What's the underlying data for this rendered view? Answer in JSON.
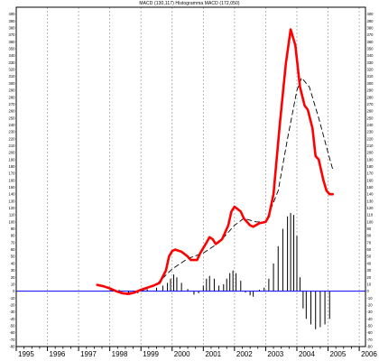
{
  "title": "MACD (130,117) Histogramma MACD (172,050)",
  "colors": {
    "macd": "#ff0000",
    "signal": "#000000",
    "zero_line": "#0000ff",
    "histogram": "#000000",
    "grid": "#9a9a9a"
  },
  "chart_data": {
    "type": "line",
    "title": "MACD (130,117) Histogramma MACD (172,050)",
    "xlabel": "",
    "ylabel": "",
    "xlim": [
      1995.0,
      2006.2
    ],
    "ylim": [
      -80,
      410
    ],
    "y_ticks": [
      400,
      390,
      380,
      370,
      360,
      350,
      340,
      330,
      320,
      310,
      300,
      290,
      280,
      270,
      260,
      250,
      240,
      230,
      220,
      210,
      200,
      190,
      180,
      170,
      160,
      150,
      140,
      130,
      120,
      110,
      100,
      90,
      80,
      70,
      60,
      50,
      40,
      30,
      20,
      10,
      0,
      -10,
      -20,
      -30,
      -40,
      -50,
      -60,
      -70,
      -80
    ],
    "y_tick_labels": [
      "400",
      "390",
      "380",
      "370",
      "360",
      "350",
      "340",
      "330",
      "320",
      "310",
      "300",
      "290",
      "280",
      "270",
      "260",
      "250",
      "240",
      "230",
      "220",
      "210",
      "200",
      "190",
      "180",
      "170",
      "160",
      "150",
      "140",
      "130",
      "120",
      "110",
      "100",
      "90",
      "80",
      "70",
      "60",
      "50",
      "40",
      "30",
      "20",
      "10",
      "0",
      "-10",
      "-20",
      "-30",
      "-40",
      "-50",
      "-60",
      "-70",
      "-80"
    ],
    "x_ticks": [
      1995,
      1996,
      1997,
      1998,
      1999,
      2000,
      2001,
      2002,
      2003,
      2004,
      2005,
      2006
    ],
    "x_tick_labels": [
      "1995",
      "1996",
      "1997",
      "1998",
      "1999",
      "2000",
      "2001",
      "2002",
      "2003",
      "2004",
      "2005",
      "2006"
    ],
    "grid": "vertical dashed",
    "series": [
      {
        "type": "line",
        "style": "thick solid red",
        "points": [
          [
            1997.6,
            9
          ],
          [
            1997.8,
            7
          ],
          [
            1998.0,
            4
          ],
          [
            1998.2,
            0
          ],
          [
            1998.4,
            -3
          ],
          [
            1998.6,
            -4
          ],
          [
            1998.8,
            -2
          ],
          [
            1999.0,
            2
          ],
          [
            1999.2,
            5
          ],
          [
            1999.4,
            8
          ],
          [
            1999.6,
            12
          ],
          [
            1999.8,
            30
          ],
          [
            1999.9,
            50
          ],
          [
            2000.0,
            58
          ],
          [
            2000.1,
            60
          ],
          [
            2000.3,
            57
          ],
          [
            2000.5,
            50
          ],
          [
            2000.6,
            45
          ],
          [
            2000.8,
            45
          ],
          [
            2000.9,
            55
          ],
          [
            2001.1,
            70
          ],
          [
            2001.2,
            78
          ],
          [
            2001.3,
            75
          ],
          [
            2001.4,
            68
          ],
          [
            2001.6,
            75
          ],
          [
            2001.8,
            95
          ],
          [
            2001.9,
            115
          ],
          [
            2002.0,
            122
          ],
          [
            2002.2,
            115
          ],
          [
            2002.3,
            105
          ],
          [
            2002.5,
            95
          ],
          [
            2002.6,
            93
          ],
          [
            2002.8,
            98
          ],
          [
            2003.0,
            100
          ],
          [
            2003.1,
            108
          ],
          [
            2003.25,
            140
          ],
          [
            2003.45,
            240
          ],
          [
            2003.65,
            330
          ],
          [
            2003.8,
            378
          ],
          [
            2003.95,
            355
          ],
          [
            2004.1,
            295
          ],
          [
            2004.25,
            268
          ],
          [
            2004.35,
            262
          ],
          [
            2004.5,
            235
          ],
          [
            2004.6,
            195
          ],
          [
            2004.7,
            190
          ],
          [
            2004.85,
            160
          ],
          [
            2004.95,
            145
          ],
          [
            2005.05,
            140
          ],
          [
            2005.15,
            140
          ]
        ]
      },
      {
        "type": "line",
        "style": "dashed black",
        "points": [
          [
            1998.0,
            2
          ],
          [
            1998.5,
            -3
          ],
          [
            1999.0,
            0
          ],
          [
            1999.5,
            10
          ],
          [
            2000.0,
            32
          ],
          [
            2000.5,
            47
          ],
          [
            2001.0,
            55
          ],
          [
            2001.5,
            70
          ],
          [
            2002.0,
            95
          ],
          [
            2002.3,
            105
          ],
          [
            2002.7,
            100
          ],
          [
            2003.0,
            100
          ],
          [
            2003.4,
            145
          ],
          [
            2003.7,
            220
          ],
          [
            2004.0,
            290
          ],
          [
            2004.15,
            308
          ],
          [
            2004.4,
            295
          ],
          [
            2004.7,
            250
          ],
          [
            2005.0,
            200
          ],
          [
            2005.15,
            176
          ]
        ]
      },
      {
        "type": "histogram",
        "style": "thin black bars",
        "points": [
          [
            1998.3,
            2
          ],
          [
            1998.6,
            -2
          ],
          [
            1998.9,
            -3
          ],
          [
            1999.2,
            3
          ],
          [
            1999.5,
            5
          ],
          [
            1999.7,
            8
          ],
          [
            1999.85,
            12
          ],
          [
            1999.95,
            18
          ],
          [
            2000.05,
            24
          ],
          [
            2000.15,
            20
          ],
          [
            2000.3,
            12
          ],
          [
            2000.5,
            3
          ],
          [
            2000.7,
            -5
          ],
          [
            2000.85,
            -3
          ],
          [
            2001.0,
            8
          ],
          [
            2001.1,
            18
          ],
          [
            2001.2,
            22
          ],
          [
            2001.35,
            18
          ],
          [
            2001.5,
            8
          ],
          [
            2001.65,
            10
          ],
          [
            2001.75,
            18
          ],
          [
            2001.85,
            26
          ],
          [
            2001.95,
            30
          ],
          [
            2002.05,
            26
          ],
          [
            2002.2,
            15
          ],
          [
            2002.35,
            -2
          ],
          [
            2002.5,
            -6
          ],
          [
            2002.6,
            -8
          ],
          [
            2002.8,
            2
          ],
          [
            2002.95,
            5
          ],
          [
            2003.1,
            18
          ],
          [
            2003.25,
            40
          ],
          [
            2003.4,
            65
          ],
          [
            2003.55,
            90
          ],
          [
            2003.7,
            108
          ],
          [
            2003.8,
            113
          ],
          [
            2003.9,
            110
          ],
          [
            2004.0,
            80
          ],
          [
            2004.1,
            20
          ],
          [
            2004.2,
            -25
          ],
          [
            2004.3,
            -40
          ],
          [
            2004.45,
            -48
          ],
          [
            2004.6,
            -55
          ],
          [
            2004.75,
            -52
          ],
          [
            2004.9,
            -48
          ],
          [
            2005.05,
            -40
          ]
        ]
      }
    ]
  }
}
